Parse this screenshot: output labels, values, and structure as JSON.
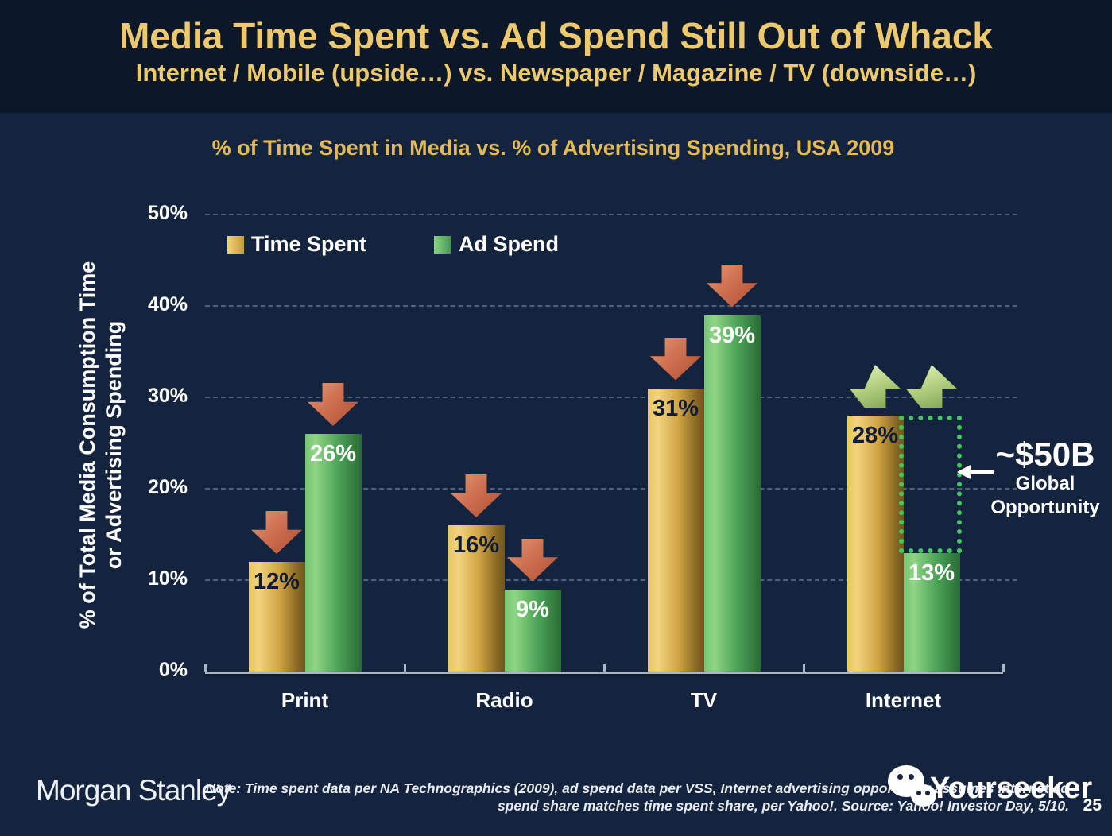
{
  "slide": {
    "title": "Media Time Spent vs. Ad Spend Still Out of Whack",
    "subtitle": "Internet / Mobile (upside…) vs. Newspaper / Magazine / TV (downside…)",
    "page_number": "25"
  },
  "chart_data": {
    "type": "bar",
    "title": "% of Time Spent in Media vs. % of Advertising Spending, USA 2009",
    "ylabel_line1": "% of Total Media Consumption Time",
    "ylabel_line2": "or Advertising Spending",
    "categories": [
      "Print",
      "Radio",
      "TV",
      "Internet"
    ],
    "series": [
      {
        "name": "Time Spent",
        "values": [
          12,
          16,
          31,
          28
        ],
        "color_theme": "gold"
      },
      {
        "name": "Ad Spend",
        "values": [
          26,
          9,
          39,
          13
        ],
        "color_theme": "green"
      }
    ],
    "value_suffix": "%",
    "ylim": [
      0,
      50
    ],
    "ytick_step": 10,
    "ytick_labels": [
      "0%",
      "10%",
      "20%",
      "30%",
      "40%",
      "50%"
    ],
    "grid": "dashed-horizontal",
    "legend_position": "top-left-inside",
    "arrows": [
      {
        "category": "Print",
        "series": "Time Spent",
        "direction": "down"
      },
      {
        "category": "Print",
        "series": "Ad Spend",
        "direction": "down"
      },
      {
        "category": "Radio",
        "series": "Time Spent",
        "direction": "down"
      },
      {
        "category": "Radio",
        "series": "Ad Spend",
        "direction": "down"
      },
      {
        "category": "TV",
        "series": "Time Spent",
        "direction": "down"
      },
      {
        "category": "TV",
        "series": "Ad Spend",
        "direction": "down"
      },
      {
        "category": "Internet",
        "series": "Time Spent",
        "direction": "up"
      },
      {
        "category": "Internet",
        "series": "Ad Spend",
        "direction": "up"
      }
    ],
    "opportunity": {
      "label_value": "~$50B",
      "label_line2": "Global",
      "label_line3": "Opportunity",
      "box": {
        "category": "Internet",
        "from_value": 13,
        "to_value": 28
      }
    }
  },
  "footer": {
    "logo": "Morgan Stanley",
    "note_line1": "Note: Time spent data per NA Technographics (2009), ad spend data per VSS, Internet advertising opportunity assumes Internet ad",
    "note_line2": "spend share matches time spent share, per Yahoo!. Source: Yahoo! Investor Day, 5/10.",
    "watermark": "Yourseeker"
  },
  "colors": {
    "background": "#15243e",
    "header_background": "#0c1727",
    "title_gold": "#ecc96e",
    "chart_title_gold": "#e4ba55",
    "bar_gold_light": "#f2d37e",
    "bar_gold_dark": "#6e5620",
    "bar_green_light": "#8fd584",
    "bar_green_dark": "#2a6b35",
    "arrow_down_red": "#cf7050",
    "arrow_up_green": "#b8d385",
    "opportunity_dotted_green": "#3fc95f",
    "gridline": "#4f6080",
    "text_white": "#ffffff"
  }
}
